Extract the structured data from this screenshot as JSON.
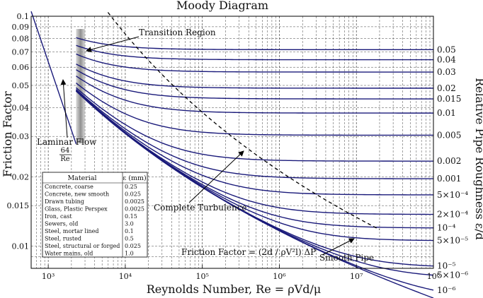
{
  "chart_data": {
    "type": "line",
    "title": "Moody Diagram",
    "xlabel": "Reynolds Number, Re = ρVd/μ",
    "ylabel": "Friction Factor",
    "y2label": "Relative Pipe Roughness ε/d",
    "x_scale": "log",
    "y_scale": "log",
    "xlim": [
      600,
      100000000
    ],
    "ylim": [
      0.008,
      0.1
    ],
    "x_ticks": [
      {
        "value": 1000,
        "label": "10³"
      },
      {
        "value": 10000,
        "label": "10⁴"
      },
      {
        "value": 100000,
        "label": "10⁵"
      },
      {
        "value": 1000000,
        "label": "10⁶"
      },
      {
        "value": 10000000,
        "label": "10⁷"
      },
      {
        "value": 100000000,
        "label": "10⁸"
      }
    ],
    "y_ticks": [
      {
        "value": 0.1,
        "label": "0.1"
      },
      {
        "value": 0.09,
        "label": "0.09"
      },
      {
        "value": 0.08,
        "label": "0.08"
      },
      {
        "value": 0.07,
        "label": "0.07"
      },
      {
        "value": 0.06,
        "label": "0.06"
      },
      {
        "value": 0.05,
        "label": "0.05"
      },
      {
        "value": 0.04,
        "label": "0.04"
      },
      {
        "value": 0.03,
        "label": "0.03"
      },
      {
        "value": 0.02,
        "label": "0.02"
      },
      {
        "value": 0.015,
        "label": "0.015"
      },
      {
        "value": 0.01,
        "label": "0.01"
      }
    ],
    "grid": true,
    "roughness_series": [
      {
        "name": "0.05",
        "value": 0.05
      },
      {
        "name": "0.04",
        "value": 0.04
      },
      {
        "name": "0.03",
        "value": 0.03
      },
      {
        "name": "0.02",
        "value": 0.02
      },
      {
        "name": "0.015",
        "value": 0.015
      },
      {
        "name": "0.01",
        "value": 0.01
      },
      {
        "name": "0.005",
        "value": 0.005
      },
      {
        "name": "0.002",
        "value": 0.002
      },
      {
        "name": "0.001",
        "value": 0.001
      },
      {
        "name": "5×10⁻⁴",
        "value": 0.0005
      },
      {
        "name": "2×10⁻⁴",
        "value": 0.0002
      },
      {
        "name": "10⁻⁴",
        "value": 0.0001
      },
      {
        "name": "5×10⁻⁵",
        "value": 5e-05
      },
      {
        "name": "10⁻⁵",
        "value": 1e-05
      },
      {
        "name": "5×10⁻⁶",
        "value": 5e-06
      },
      {
        "name": "10⁻⁶",
        "value": 1e-06
      },
      {
        "name": "",
        "value": 0
      }
    ],
    "laminar": {
      "x": [
        600,
        2300
      ],
      "f_formula": "64/Re"
    },
    "transition_region": {
      "x": [
        2300,
        3000
      ]
    },
    "annotations": {
      "transition": "Transition Region",
      "laminar": "Laminar Flow",
      "laminar_formula_num": "64",
      "laminar_formula_den": "Re",
      "complete": "Complete Turbulence",
      "smooth": "Smooth Pipe",
      "friction_formula": "Friction Factor = (2d / ρV²l) ΔP"
    },
    "materials_table": {
      "headers": [
        "Material",
        "ε (mm)"
      ],
      "rows": [
        [
          "Concrete, coarse",
          "0.25"
        ],
        [
          "Concrete, new smooth",
          "0.025"
        ],
        [
          "Drawn tubing",
          "0.0025"
        ],
        [
          "Glass, Plastic Perspex",
          "0.0025"
        ],
        [
          "Iron, cast",
          "0.15"
        ],
        [
          "Sewers, old",
          "3.0"
        ],
        [
          "Steel, mortar lined",
          "0.1"
        ],
        [
          "Steel, rusted",
          "0.5"
        ],
        [
          "Steel, structural or forged",
          "0.025"
        ],
        [
          "Water mains, old",
          "1.0"
        ]
      ]
    },
    "colors": {
      "curve": "#1a1a7a",
      "dashed": "#000000",
      "transition": "#9a9a9a"
    }
  }
}
